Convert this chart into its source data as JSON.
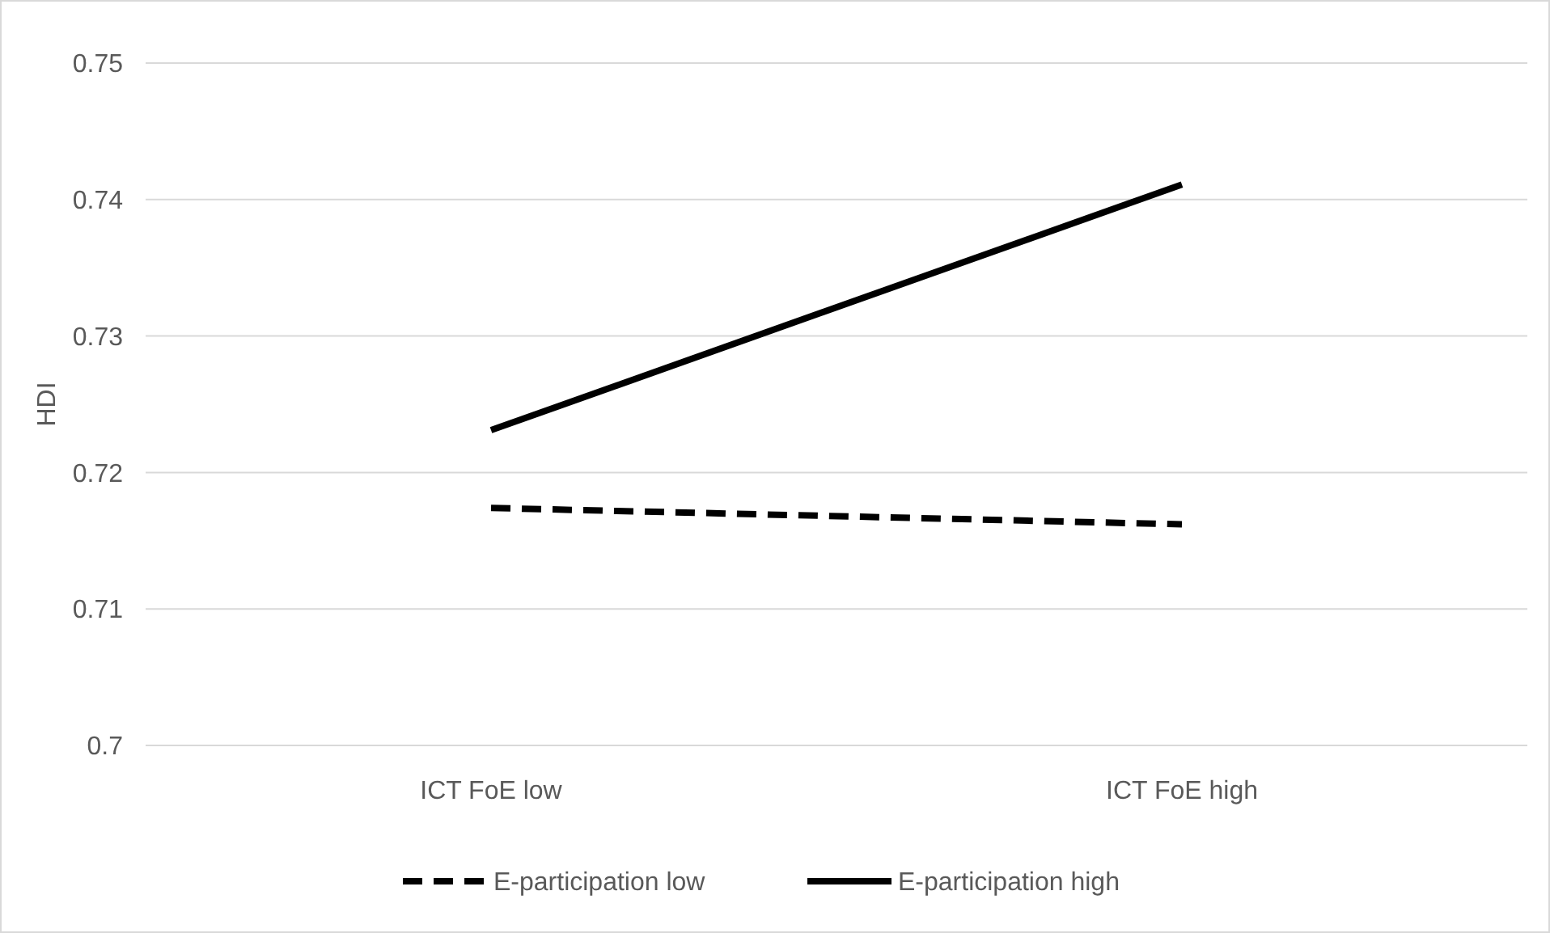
{
  "chart_data": {
    "type": "line",
    "ylabel": "HDI",
    "categories": [
      "ICT FoE low",
      "ICT FoE high"
    ],
    "series": [
      {
        "name": "E-participation low",
        "color": "#000000",
        "values": [
          0.7174,
          0.7162
        ],
        "line_style": "dashed"
      },
      {
        "name": "E-participation high",
        "color": "#000000",
        "values": [
          0.7231,
          0.7411
        ],
        "line_style": "solid"
      }
    ],
    "ylim": [
      0.7,
      0.75
    ],
    "yticks": [
      0.7,
      0.71,
      0.72,
      0.73,
      0.74,
      0.75
    ],
    "grid": "y",
    "legend": "bottom"
  }
}
